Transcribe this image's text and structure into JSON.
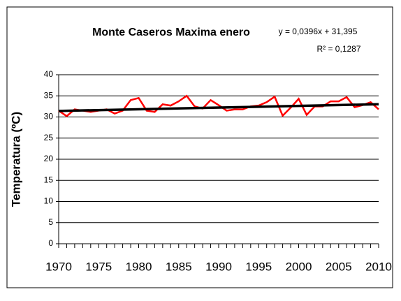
{
  "chart_data": {
    "type": "line",
    "title": "Monte Caseros Maxima enero",
    "ylabel": "Temperatura (ºC)",
    "annotations": [
      "y = 0,0396x + 31,395",
      "R² = 0,1287"
    ],
    "x": [
      1970,
      1971,
      1972,
      1973,
      1974,
      1975,
      1976,
      1977,
      1978,
      1979,
      1980,
      1981,
      1982,
      1983,
      1984,
      1985,
      1986,
      1987,
      1988,
      1989,
      1990,
      1991,
      1992,
      1993,
      1994,
      1995,
      1996,
      1997,
      1998,
      1999,
      2000,
      2001,
      2002,
      2003,
      2004,
      2005,
      2006,
      2007,
      2008,
      2009,
      2010
    ],
    "series": [
      {
        "color": "#ff0000",
        "values": [
          31.5,
          30.2,
          31.8,
          31.5,
          31.2,
          31.5,
          31.8,
          30.8,
          31.5,
          34.0,
          34.5,
          31.5,
          31.2,
          33.0,
          32.7,
          33.7,
          35.0,
          32.5,
          32.0,
          34.0,
          32.8,
          31.5,
          31.8,
          31.8,
          32.5,
          32.7,
          33.5,
          34.8,
          30.3,
          32.2,
          34.3,
          30.5,
          32.5,
          32.5,
          33.7,
          33.7,
          34.7,
          32.3,
          32.8,
          33.5,
          31.8
        ]
      }
    ],
    "trendline": {
      "color": "#000000",
      "x": [
        1970,
        2010
      ],
      "values": [
        31.43,
        33.02
      ]
    },
    "xlim": [
      1970,
      2010
    ],
    "xticks": [
      1970,
      1975,
      1980,
      1985,
      1990,
      1995,
      2000,
      2005,
      2010
    ],
    "ylim": [
      0,
      40
    ],
    "yticks": [
      0,
      5,
      10,
      15,
      20,
      25,
      30,
      35,
      40
    ],
    "grid": true
  }
}
